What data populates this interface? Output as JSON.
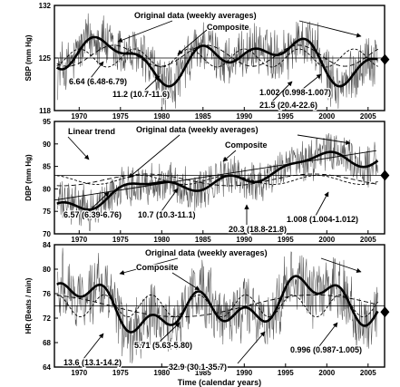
{
  "chart_data": [
    {
      "type": "line",
      "id": "sbp",
      "ylabel": "SBP (mm Hg)",
      "ylim": [
        118,
        132
      ],
      "yticks": [
        118,
        125,
        132
      ],
      "xlim": [
        1967,
        2007
      ],
      "xticks": [
        1970,
        1975,
        1980,
        1985,
        1990,
        1995,
        2000,
        2005
      ],
      "mesor": 125,
      "end_marker": {
        "x": 2006.6,
        "y": 124.8
      },
      "noise_amp": 3.0,
      "composite_base": 125,
      "components": [
        {
          "period": 21.5,
          "amp": 1.5,
          "phase": 2.1
        },
        {
          "period": 11.2,
          "amp": 1.4,
          "phase": 4.6
        },
        {
          "period": 6.64,
          "amp": 1.2,
          "phase": 0.8
        },
        {
          "period": 1.002,
          "amp": 0.5,
          "phase": 0.3
        }
      ],
      "dashed_components": [
        {
          "period": 6.64,
          "amp": 1.2,
          "phase": 1.9,
          "offset": 125
        },
        {
          "period": 11.2,
          "amp": 1.4,
          "phase": 4.6,
          "offset": 125.3
        }
      ],
      "annotations": [
        {
          "id": "original",
          "text": "Original data (weekly averages)"
        },
        {
          "id": "composite",
          "text": "Composite"
        },
        {
          "id": "p664",
          "text": "6.64 (6.48-6.79)"
        },
        {
          "id": "p112",
          "text": "11.2 (10.7-11.6)"
        },
        {
          "id": "p1002",
          "text": "1.002 (0.998-1.007)"
        },
        {
          "id": "p215",
          "text": "21.5 (20.4-22.6)"
        }
      ]
    },
    {
      "type": "line",
      "id": "dbp",
      "ylabel": "DBP (mm Hg)",
      "ylim": [
        70,
        95
      ],
      "yticks": [
        70,
        75,
        80,
        85,
        90,
        95
      ],
      "xlim": [
        1967,
        2007
      ],
      "xticks": [
        1970,
        1975,
        1980,
        1985,
        1990,
        1995,
        2000,
        2005
      ],
      "mesor": 83,
      "trend": {
        "from": [
          1967,
          77.5
        ],
        "to": [
          2006,
          88.5
        ]
      },
      "end_marker": {
        "x": 2006.6,
        "y": 83
      },
      "noise_amp": 4.0,
      "composite_base": 82,
      "components": [
        {
          "period": 20.3,
          "amp": 1.3,
          "phase": 3.5
        },
        {
          "period": 10.7,
          "amp": 1.0,
          "phase": 1.2
        },
        {
          "period": 6.57,
          "amp": 0.8,
          "phase": 2.6
        },
        {
          "period": 1.008,
          "amp": 0.4,
          "phase": 0.1
        }
      ],
      "dashed_components": [
        {
          "period": 10.7,
          "amp": 1.0,
          "phase": 1.2,
          "offset": 82
        },
        {
          "period": 20.3,
          "amp": 1.3,
          "phase": 3.5,
          "offset": 82
        }
      ],
      "annotations": [
        {
          "id": "trend",
          "text": "Linear trend"
        },
        {
          "id": "original",
          "text": "Original data (weekly averages)"
        },
        {
          "id": "composite",
          "text": "Composite"
        },
        {
          "id": "p657",
          "text": "6.57 (6.39-6.76)"
        },
        {
          "id": "p107",
          "text": "10.7 (10.3-11.1)"
        },
        {
          "id": "p1008",
          "text": "1.008 (1.004-1.012)"
        },
        {
          "id": "p203",
          "text": "20.3 (18.8-21.8)"
        }
      ]
    },
    {
      "type": "line",
      "id": "hr",
      "ylabel": "HR (Beats / min)",
      "xlabel": "Time (calendar years)",
      "ylim": [
        64,
        84
      ],
      "yticks": [
        64,
        68,
        72,
        76,
        80,
        84
      ],
      "xlim": [
        1967,
        2007
      ],
      "xticks": [
        1970,
        1975,
        1980,
        1985,
        1990,
        1995,
        2000,
        2005
      ],
      "mesor": 74,
      "end_marker": {
        "x": 2006.6,
        "y": 73
      },
      "noise_amp": 4.5,
      "composite_base": 74,
      "components": [
        {
          "period": 32.9,
          "amp": 1.8,
          "phase": 1.6
        },
        {
          "period": 13.6,
          "amp": 2.2,
          "phase": 0.6
        },
        {
          "period": 5.71,
          "amp": 1.8,
          "phase": 2.9
        },
        {
          "period": 0.996,
          "amp": 0.5,
          "phase": 0.5
        }
      ],
      "dashed_components": [
        {
          "period": 5.71,
          "amp": 1.8,
          "phase": 2.9,
          "offset": 74
        },
        {
          "period": 32.9,
          "amp": 1.8,
          "phase": 1.6,
          "offset": 74
        }
      ],
      "annotations": [
        {
          "id": "original",
          "text": "Original data (weekly averages)"
        },
        {
          "id": "composite",
          "text": "Composite"
        },
        {
          "id": "p136",
          "text": "13.6 (13.1-14.2)"
        },
        {
          "id": "p571",
          "text": "5.71 (5.63-5.80)"
        },
        {
          "id": "p329",
          "text": "32.9 (30.1-35.7)"
        },
        {
          "id": "p0996",
          "text": "0.996 (0.987-1.005)"
        }
      ]
    }
  ]
}
